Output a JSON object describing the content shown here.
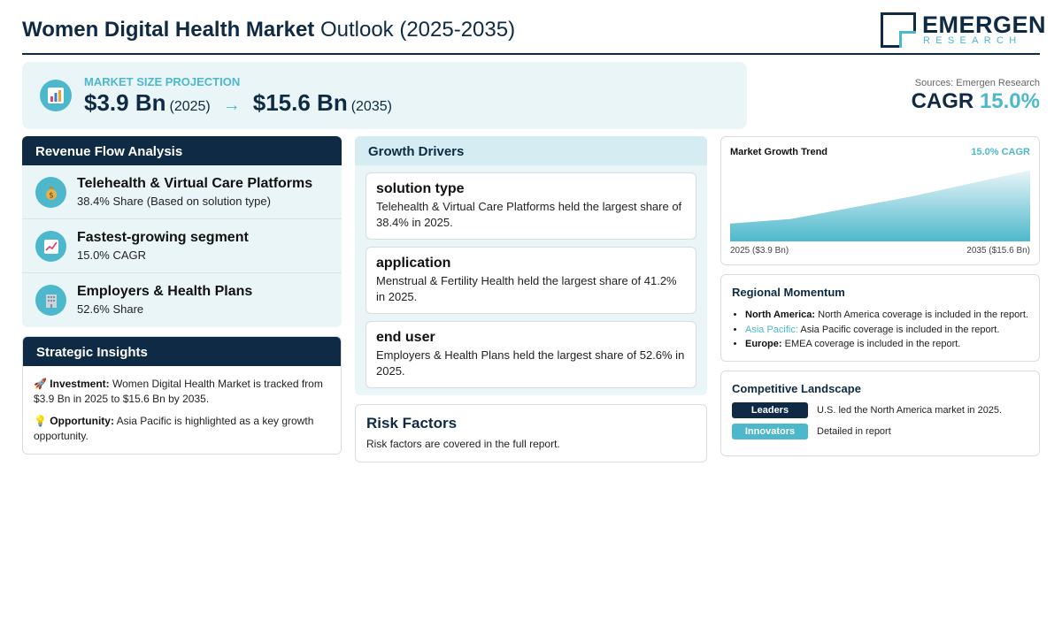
{
  "header": {
    "title_bold": "Women Digital Health Market",
    "title_rest": " Outlook (2025-2035)",
    "logo_name": "EMERGEN",
    "logo_sub": "RESEARCH"
  },
  "projection": {
    "icon": "bar-chart-icon",
    "label": "MARKET SIZE PROJECTION",
    "start_value": "$3.9 Bn",
    "start_year": "(2025)",
    "arrow": "→",
    "end_value": "$15.6 Bn",
    "end_year": "(2035)"
  },
  "summary": {
    "sources": "Sources: Emergen Research",
    "cagr_label": "CAGR ",
    "cagr_value": "15.0%"
  },
  "revenue_flow": {
    "heading": "Revenue Flow Analysis",
    "items": [
      {
        "icon": "money-bag-icon",
        "title": "Telehealth & Virtual Care Platforms",
        "subtitle": "38.4% Share (Based on solution type)"
      },
      {
        "icon": "trending-up-icon",
        "title": "Fastest-growing segment",
        "subtitle": "15.0% CAGR"
      },
      {
        "icon": "office-building-icon",
        "title": "Employers & Health Plans",
        "subtitle": "52.6% Share"
      }
    ]
  },
  "strategic_insights": {
    "heading": "Strategic Insights",
    "items": [
      {
        "icon": "rocket-icon",
        "label": "Investment:",
        "text": "Women Digital Health Market is tracked from $3.9 Bn in 2025 to $15.6 Bn by 2035."
      },
      {
        "icon": "lightbulb-icon",
        "label": "Opportunity:",
        "text": "Asia Pacific is highlighted as a key growth opportunity."
      }
    ]
  },
  "growth_drivers": {
    "heading": "Growth Drivers",
    "items": [
      {
        "title": "solution type",
        "text": "Telehealth & Virtual Care Platforms held the largest share of 38.4% in 2025."
      },
      {
        "title": "application",
        "text": "Menstrual & Fertility Health held the largest share of 41.2% in 2025."
      },
      {
        "title": "end user",
        "text": "Employers & Health Plans held the largest share of 52.6% in 2025."
      }
    ]
  },
  "risk_factors": {
    "heading": "Risk Factors",
    "text": "Risk factors are covered in the full report."
  },
  "market_trend": {
    "title": "Market Growth Trend",
    "cagr_label": "15.0% CAGR",
    "start_label": "2025 ($3.9 Bn)",
    "end_label": "2035 ($15.6 Bn)",
    "colors": {
      "fill_top": "#4db8cc",
      "fill_bottom": "#e8f5f8"
    }
  },
  "chart_data": {
    "type": "area",
    "x": [
      2025,
      2027,
      2031,
      2035
    ],
    "values": [
      3.9,
      4.9,
      9.8,
      15.6
    ],
    "title": "Market Growth Trend",
    "xlabel": "",
    "ylabel": "",
    "grid": false
  },
  "regional": {
    "heading": "Regional Momentum",
    "items": [
      {
        "region": "North America:",
        "text": " North America coverage is included in the report."
      },
      {
        "region": "Asia Pacific:",
        "text": " Asia Pacific coverage is included in the report."
      },
      {
        "region": "Europe:",
        "text": " EMEA coverage is included in the report."
      }
    ]
  },
  "competitive": {
    "heading": "Competitive Landscape",
    "rows": [
      {
        "badge": "Leaders",
        "text": "U.S. led the North America market in 2025."
      },
      {
        "badge": "Innovators",
        "text": "Detailed in report"
      }
    ]
  },
  "colors": {
    "navy": "#0f2a44",
    "accent": "#4db8cc",
    "panel": "#eaf5f8"
  }
}
